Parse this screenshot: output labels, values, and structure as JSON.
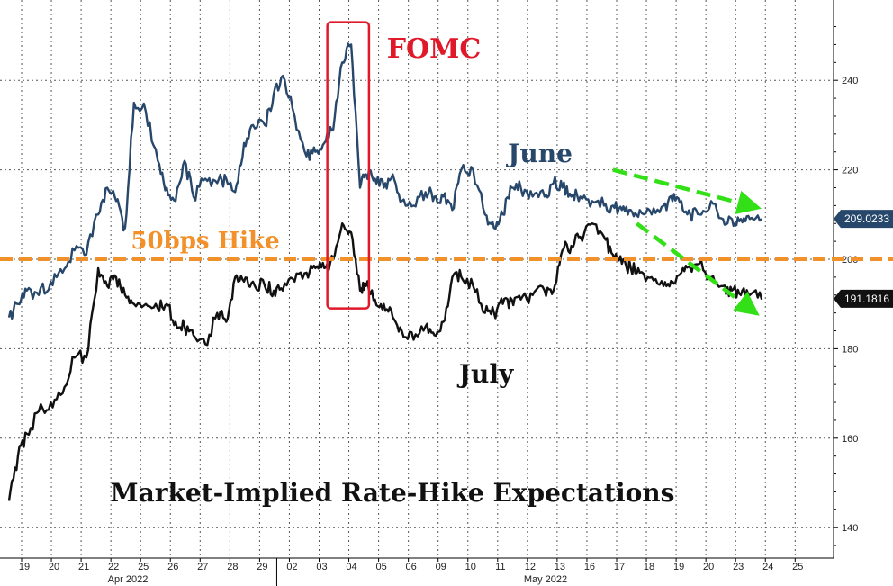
{
  "chart_data": {
    "type": "line",
    "title": "Market-Implied Rate-Hike Expectations",
    "xlabel": "",
    "ylabel": "",
    "ylim": [
      134,
      254
    ],
    "y_ticks": [
      140,
      160,
      180,
      200,
      220,
      240
    ],
    "grid": true,
    "x_ticks": [
      "19",
      "20",
      "21",
      "22",
      "25",
      "26",
      "27",
      "28",
      "29",
      "02",
      "03",
      "04",
      "05",
      "06",
      "09",
      "10",
      "11",
      "12",
      "13",
      "16",
      "17",
      "18",
      "19",
      "20",
      "23",
      "24",
      "25"
    ],
    "month_labels": [
      "Apr 2022",
      "May 2022"
    ],
    "series": [
      {
        "name": "June",
        "color": "#27476b",
        "last_value_label": "209.0233",
        "x": [
          0,
          0.3,
          0.6,
          1.0,
          1.4,
          1.8,
          2.2,
          2.6,
          3.0,
          3.3,
          3.6,
          3.9,
          4.2,
          4.6,
          5.0,
          5.3,
          5.6,
          5.9,
          6.2,
          6.6,
          7.0,
          7.3,
          7.6,
          7.9,
          8.2,
          8.6,
          8.9,
          9.2,
          9.6,
          10.0,
          10.3,
          10.6,
          10.9,
          11.2,
          11.5,
          11.8,
          12.0,
          12.3,
          12.6,
          12.9,
          13.2,
          13.6,
          14.0,
          14.3,
          14.6,
          14.9,
          15.2,
          15.6,
          16.0,
          16.3,
          16.6,
          16.9,
          17.2,
          17.6,
          18.0,
          18.3,
          18.6,
          18.9,
          19.2,
          19.6,
          20.0,
          20.3,
          20.6,
          20.9,
          21.2,
          21.6,
          22.0,
          22.3,
          22.6,
          22.9,
          23.2,
          23.6,
          24.0,
          24.3,
          24.6,
          24.9,
          25.3
        ],
        "values": [
          187,
          190,
          193,
          192,
          195,
          197,
          202,
          201,
          210,
          216,
          213,
          207,
          235,
          233,
          222,
          216,
          213,
          222,
          214,
          218,
          217,
          218,
          215,
          226,
          230,
          230,
          237,
          241,
          232,
          223,
          224,
          226,
          229,
          244,
          248,
          216,
          219,
          218,
          216,
          219,
          213,
          212,
          215,
          214,
          214,
          211,
          220,
          220,
          210,
          207,
          210,
          216,
          216,
          214,
          214,
          217,
          216,
          214,
          214,
          213,
          212,
          212,
          211,
          211,
          211,
          210,
          212,
          213,
          213,
          210,
          210,
          213,
          209,
          209,
          209,
          209,
          209
        ],
        "end_value": 209.0233
      },
      {
        "name": "July",
        "color": "#111111",
        "last_value_label": "191.1816",
        "x": [
          0,
          0.3,
          0.6,
          1.0,
          1.4,
          1.8,
          2.2,
          2.6,
          3.0,
          3.3,
          3.6,
          3.9,
          4.2,
          4.6,
          5.0,
          5.3,
          5.6,
          5.9,
          6.2,
          6.6,
          7.0,
          7.3,
          7.6,
          7.9,
          8.2,
          8.6,
          8.9,
          9.2,
          9.6,
          10.0,
          10.3,
          10.6,
          10.9,
          11.2,
          11.5,
          11.8,
          12.0,
          12.3,
          12.6,
          12.9,
          13.2,
          13.6,
          14.0,
          14.3,
          14.6,
          14.9,
          15.2,
          15.6,
          16.0,
          16.3,
          16.6,
          16.9,
          17.2,
          17.6,
          18.0,
          18.3,
          18.6,
          18.9,
          19.2,
          19.6,
          20.0,
          20.3,
          20.6,
          20.9,
          21.2,
          21.6,
          22.0,
          22.3,
          22.6,
          22.9,
          23.2,
          23.6,
          24.0,
          24.3,
          24.6,
          24.9,
          25.3
        ],
        "values": [
          146,
          156,
          161,
          166,
          168,
          170,
          178,
          178,
          198,
          194,
          196,
          192,
          190,
          190,
          189,
          190,
          186,
          185,
          183,
          181,
          188,
          186,
          196,
          195,
          195,
          194,
          193,
          193,
          195,
          197,
          198,
          198,
          200,
          208,
          206,
          193,
          194,
          191,
          190,
          187,
          184,
          182,
          185,
          183,
          186,
          196,
          196,
          194,
          188,
          188,
          190,
          191,
          191,
          192,
          193,
          193,
          202,
          203,
          205,
          208,
          205,
          201,
          199,
          198,
          197,
          196,
          194,
          195,
          197,
          198,
          199,
          196,
          194,
          193,
          192,
          192,
          191
        ],
        "end_value": 191.1816
      }
    ],
    "annotations": [
      {
        "text": "FOMC",
        "color": "#e0192a"
      },
      {
        "text": "June",
        "color": "#27476b"
      },
      {
        "text": "July",
        "color": "#111111"
      },
      {
        "text": "50bps Hike",
        "color": "#f2912a",
        "y": 200
      }
    ],
    "trend_arrows": [
      {
        "from": {
          "x": 20.3,
          "y": 220
        },
        "to": {
          "x": 24.9,
          "y": 212
        }
      },
      {
        "from": {
          "x": 21.1,
          "y": 208
        },
        "to": {
          "x": 24.9,
          "y": 189
        }
      }
    ],
    "fomc_window": {
      "x_from": 10.7,
      "x_to": 12.1,
      "y_from": 189,
      "y_to": 253
    }
  }
}
